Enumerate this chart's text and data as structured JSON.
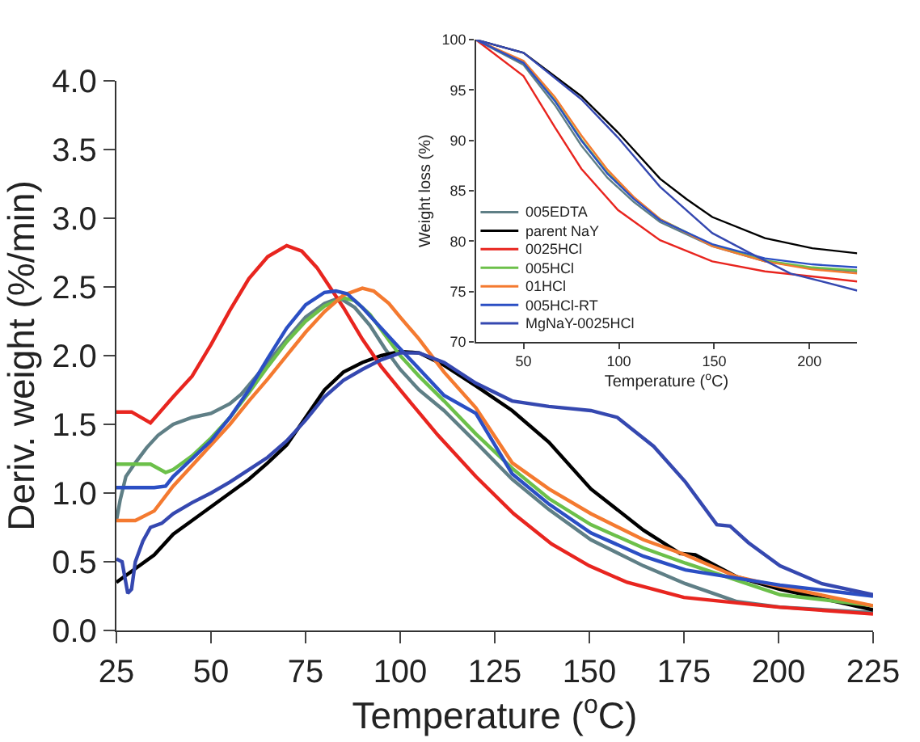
{
  "chart_data": [
    {
      "type": "line",
      "xlabel": "Temperature ($^{o}$C)",
      "ylabel": "Deriv. weight (%/min)",
      "xlim": [
        25,
        225
      ],
      "ylim": [
        0,
        4
      ],
      "xticks": [
        25,
        50,
        75,
        100,
        125,
        150,
        175,
        200,
        225
      ],
      "yticks": [
        {
          "value": 0,
          "label": "0.0"
        },
        {
          "value": 0.5,
          "label": "0.5"
        },
        {
          "value": 1,
          "label": "1.0"
        },
        {
          "value": 1.5,
          "label": "1.5"
        },
        {
          "value": 2,
          "label": "2.0"
        },
        {
          "value": 2.5,
          "label": "2.5"
        },
        {
          "value": 3,
          "label": "3.0"
        },
        {
          "value": 3.5,
          "label": "3.5"
        },
        {
          "value": 4,
          "label": "4.0"
        }
      ],
      "legend": false,
      "marker": "none",
      "line_style": "solid",
      "series": [
        {
          "color": "#5f7f86",
          "x": [
            25,
            26,
            27.5,
            30,
            33,
            36,
            40,
            45,
            50,
            55,
            58,
            62,
            65,
            70,
            75,
            80,
            84,
            88,
            92,
            96,
            100,
            105,
            111.6,
            120,
            129.6,
            139.3,
            150.4,
            164.3,
            175.4,
            189,
            200.4,
            225
          ],
          "values": [
            0.8,
            0.95,
            1.12,
            1.22,
            1.33,
            1.42,
            1.5,
            1.55,
            1.58,
            1.65,
            1.72,
            1.85,
            1.95,
            2.12,
            2.28,
            2.38,
            2.42,
            2.35,
            2.22,
            2.05,
            1.9,
            1.75,
            1.6,
            1.37,
            1.1,
            0.88,
            0.66,
            0.47,
            0.34,
            0.21,
            0.17,
            0.13
          ]
        },
        {
          "color": "#000000",
          "x": [
            25,
            30,
            35,
            40,
            45,
            50,
            55,
            60,
            65,
            70,
            75,
            80,
            85,
            90,
            95,
            100,
            105,
            111.6,
            120,
            129.6,
            139.3,
            150.4,
            164.3,
            174,
            178,
            189,
            200.4,
            225
          ],
          "values": [
            0.35,
            0.45,
            0.55,
            0.7,
            0.8,
            0.9,
            1.0,
            1.1,
            1.22,
            1.35,
            1.55,
            1.75,
            1.88,
            1.95,
            2.0,
            2.03,
            2.02,
            1.93,
            1.78,
            1.6,
            1.37,
            1.03,
            0.73,
            0.56,
            0.55,
            0.39,
            0.3,
            0.15
          ]
        },
        {
          "color": "#e8251f",
          "x": [
            25,
            29,
            34,
            40,
            45,
            50,
            55,
            60,
            65,
            70,
            74,
            78,
            85,
            90,
            95,
            100,
            110,
            120,
            130,
            140,
            150,
            160,
            175,
            200,
            225
          ],
          "values": [
            1.59,
            1.59,
            1.51,
            1.7,
            1.85,
            2.08,
            2.33,
            2.56,
            2.72,
            2.8,
            2.76,
            2.64,
            2.35,
            2.12,
            1.92,
            1.75,
            1.42,
            1.12,
            0.85,
            0.63,
            0.47,
            0.35,
            0.24,
            0.17,
            0.12
          ]
        },
        {
          "color": "#6cc04a",
          "x": [
            25,
            30,
            34,
            38,
            40,
            45,
            50,
            55,
            60,
            65,
            70,
            75,
            80,
            85,
            88,
            92,
            96,
            100,
            105,
            111.6,
            120,
            129.6,
            139.3,
            150.4,
            164.3,
            175.4,
            200.4,
            225
          ],
          "values": [
            1.21,
            1.21,
            1.21,
            1.15,
            1.17,
            1.27,
            1.4,
            1.55,
            1.73,
            1.92,
            2.1,
            2.25,
            2.36,
            2.42,
            2.4,
            2.3,
            2.15,
            2.0,
            1.85,
            1.67,
            1.43,
            1.18,
            0.96,
            0.77,
            0.6,
            0.49,
            0.26,
            0.18
          ]
        },
        {
          "color": "#f47a30",
          "x": [
            25,
            30,
            35,
            40,
            45,
            50,
            55,
            60,
            65,
            70,
            75,
            80,
            85,
            90,
            93,
            97,
            100,
            105,
            111.6,
            120,
            129.6,
            139.3,
            150.4,
            164.3,
            175.4,
            189,
            200.4,
            225
          ],
          "values": [
            0.8,
            0.8,
            0.87,
            1.05,
            1.2,
            1.35,
            1.5,
            1.67,
            1.83,
            2.0,
            2.17,
            2.32,
            2.44,
            2.49,
            2.47,
            2.38,
            2.28,
            2.12,
            1.88,
            1.62,
            1.22,
            1.03,
            0.85,
            0.66,
            0.55,
            0.39,
            0.32,
            0.18
          ]
        },
        {
          "color": "#2b4fc4",
          "x": [
            25,
            30,
            35,
            38,
            40,
            45,
            50,
            55,
            60,
            65,
            70,
            75,
            80,
            83,
            86,
            90,
            100,
            111.6,
            120,
            129.6,
            139.3,
            150.4,
            164.3,
            175.4,
            200.4,
            225
          ],
          "values": [
            1.04,
            1.04,
            1.04,
            1.05,
            1.12,
            1.25,
            1.38,
            1.55,
            1.75,
            1.98,
            2.2,
            2.37,
            2.46,
            2.47,
            2.45,
            2.35,
            2.05,
            1.71,
            1.58,
            1.14,
            0.92,
            0.71,
            0.54,
            0.44,
            0.33,
            0.25
          ]
        },
        {
          "color": "#3548b0",
          "x": [
            25,
            26.5,
            28,
            29,
            30,
            32,
            34,
            37,
            40,
            45,
            50,
            55,
            60,
            65,
            70,
            75,
            80,
            85,
            90,
            95,
            100,
            105,
            111.6,
            120,
            129.6,
            139.3,
            150.4,
            157.4,
            167,
            175.4,
            183.7,
            187.2,
            192,
            200.4,
            211.5,
            225
          ],
          "values": [
            0.52,
            0.5,
            0.27,
            0.3,
            0.5,
            0.65,
            0.75,
            0.78,
            0.85,
            0.93,
            1.0,
            1.08,
            1.17,
            1.26,
            1.38,
            1.53,
            1.7,
            1.82,
            1.9,
            1.97,
            2.02,
            2.02,
            1.95,
            1.8,
            1.67,
            1.63,
            1.6,
            1.55,
            1.34,
            1.08,
            0.77,
            0.76,
            0.64,
            0.47,
            0.34,
            0.26
          ]
        }
      ]
    },
    {
      "type": "line",
      "xlabel": "Temperature ($^{o}$C)",
      "ylabel": "Weight loss (%)",
      "xlim": [
        25,
        225
      ],
      "ylim": [
        70,
        100
      ],
      "xticks": [
        50,
        100,
        150,
        200
      ],
      "yticks": [
        70,
        75,
        80,
        85,
        90,
        95,
        100
      ],
      "legend": "bottom left",
      "marker": "none",
      "line_style": "solid",
      "series": [
        {
          "name": "005EDTA",
          "color": "#5f7f86",
          "x": [
            25,
            50,
            66.5,
            80.3,
            94,
            107.8,
            121.6,
            149,
            176.6,
            201.4,
            225
          ],
          "values": [
            100,
            97.5,
            93.5,
            89.5,
            86.3,
            83.9,
            81.9,
            79.5,
            78.0,
            77.3,
            77.0
          ]
        },
        {
          "name": "parent NaY",
          "color": "#000000",
          "x": [
            25,
            50,
            80.3,
            99.5,
            121.6,
            135.3,
            149,
            176.6,
            201.4,
            225
          ],
          "values": [
            100,
            98.7,
            94.4,
            90.8,
            86.2,
            84.2,
            82.4,
            80.3,
            79.3,
            78.8
          ]
        },
        {
          "name": "0025HCl",
          "color": "#e8251f",
          "x": [
            25,
            50,
            66.5,
            80.3,
            99.5,
            121.6,
            149,
            176.6,
            201.4,
            225
          ],
          "values": [
            100,
            96.4,
            91.3,
            87.2,
            83.1,
            80.1,
            78.0,
            77.0,
            76.5,
            76.0
          ]
        },
        {
          "name": "005HCl",
          "color": "#6cc04a",
          "x": [
            25,
            50,
            66.5,
            80.3,
            94,
            107.8,
            121.6,
            149,
            176.6,
            201.4,
            225
          ],
          "values": [
            100,
            97.8,
            94.0,
            90.1,
            86.8,
            84.3,
            82.2,
            79.6,
            78.1,
            77.4,
            77.1
          ]
        },
        {
          "name": "01HCl",
          "color": "#f47a30",
          "x": [
            25,
            50,
            66.5,
            80.3,
            94,
            107.8,
            121.6,
            149,
            176.6,
            201.4,
            225
          ],
          "values": [
            100,
            97.9,
            94.3,
            90.5,
            87.1,
            84.4,
            82.2,
            79.5,
            78.0,
            77.2,
            76.8
          ]
        },
        {
          "name": "005HCl-RT",
          "color": "#2b4fc4",
          "x": [
            25,
            50,
            66.5,
            80.3,
            94,
            107.8,
            121.6,
            149,
            176.6,
            201.4,
            225
          ],
          "values": [
            100,
            97.7,
            93.9,
            90.0,
            86.7,
            84.2,
            82.1,
            79.7,
            78.3,
            77.7,
            77.4
          ]
        },
        {
          "name": "MgNaY-0025HCl",
          "color": "#3548b0",
          "x": [
            25,
            50,
            80.3,
            99.5,
            121.6,
            149,
            168,
            190,
            225
          ],
          "values": [
            100,
            98.7,
            94.1,
            90.3,
            85.4,
            80.8,
            78.9,
            76.8,
            75.1
          ]
        }
      ]
    }
  ]
}
